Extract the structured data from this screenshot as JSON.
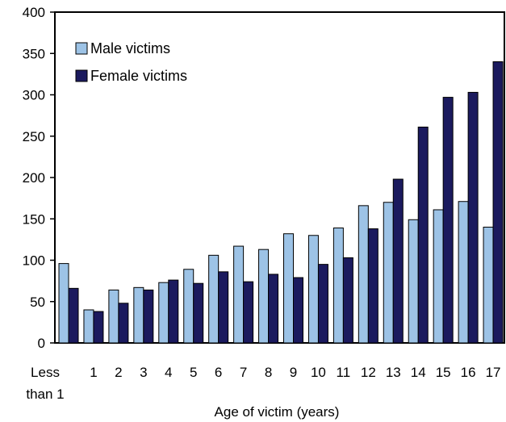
{
  "colors": {
    "male": "#9DC3E6",
    "female": "#1B1A5E",
    "stroke": "#000000",
    "background": "#ffffff"
  },
  "chart_data": {
    "type": "bar",
    "xlabel": "Age of victim (years)",
    "ylabel": "",
    "title": "",
    "ylim": [
      0,
      400
    ],
    "yticks": [
      0,
      50,
      100,
      150,
      200,
      250,
      300,
      350,
      400
    ],
    "grid": false,
    "legend_position": "top-left",
    "categories": [
      [
        "Less",
        "than 1"
      ],
      [
        "1"
      ],
      [
        "2"
      ],
      [
        "3"
      ],
      [
        "4"
      ],
      [
        "5"
      ],
      [
        "6"
      ],
      [
        "7"
      ],
      [
        "8"
      ],
      [
        "9"
      ],
      [
        "10"
      ],
      [
        "11"
      ],
      [
        "12"
      ],
      [
        "13"
      ],
      [
        "14"
      ],
      [
        "15"
      ],
      [
        "16"
      ],
      [
        "17"
      ]
    ],
    "series": [
      {
        "name": "Male victims",
        "values": [
          96,
          40,
          64,
          67,
          73,
          89,
          106,
          117,
          113,
          132,
          130,
          139,
          166,
          170,
          149,
          161,
          171,
          140
        ]
      },
      {
        "name": "Female victims",
        "values": [
          66,
          38,
          48,
          64,
          76,
          72,
          86,
          74,
          83,
          79,
          95,
          103,
          138,
          198,
          261,
          297,
          303,
          340
        ]
      }
    ]
  }
}
